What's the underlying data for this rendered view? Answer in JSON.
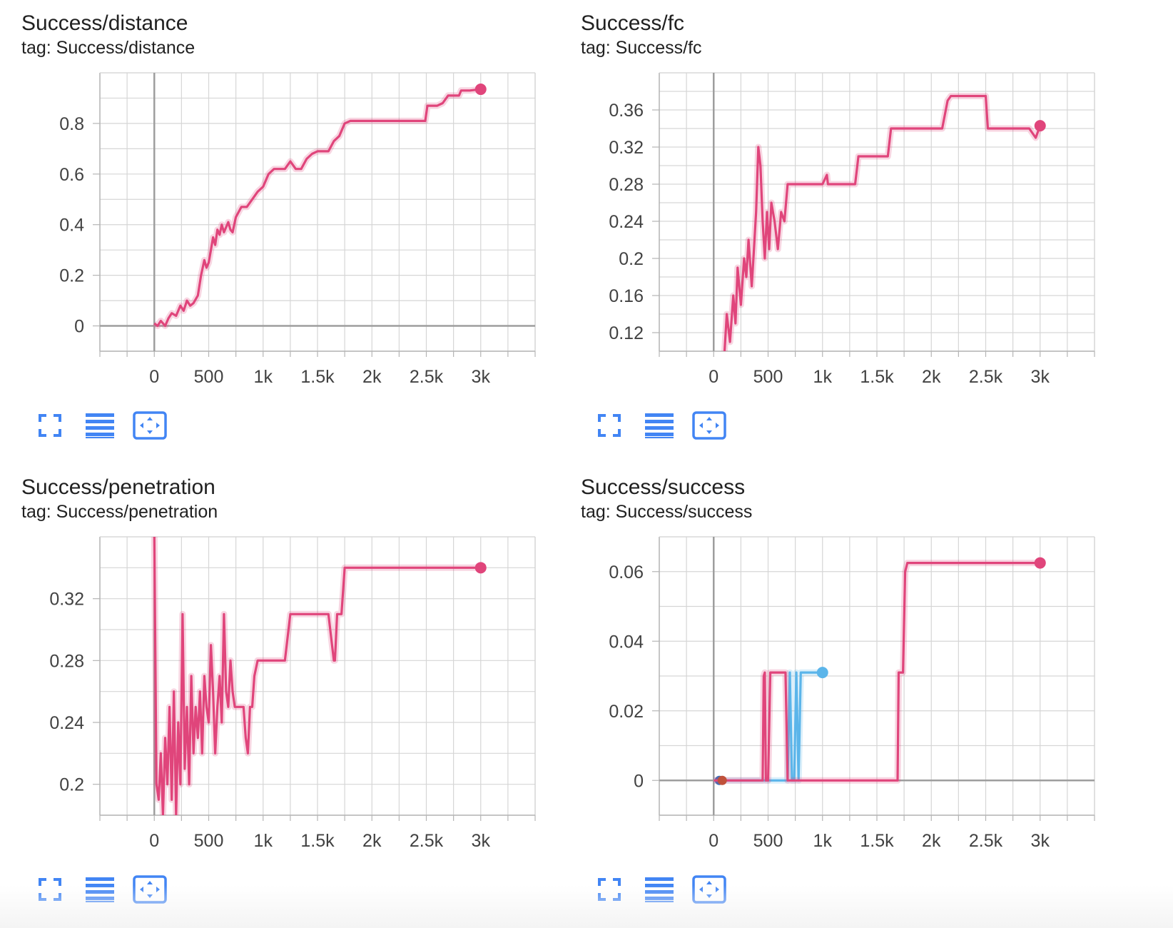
{
  "colors": {
    "accent": "#e0457b",
    "blue": "#5bb5ea",
    "icon": "#4285f4",
    "grid": "#dcdcdc",
    "axis": "#999999"
  },
  "icons": {
    "fullscreen": "fullscreen-icon",
    "log_scale": "list-lines-icon",
    "fit_domain": "fit-domain-icon"
  },
  "charts": [
    {
      "title": "Success/distance",
      "tag": "tag: Success/distance",
      "chart_data": {
        "type": "line",
        "xlim": [
          -500,
          3500
        ],
        "ylim": [
          -0.1,
          1.0
        ],
        "xticks": [
          0,
          500,
          1000,
          1500,
          2000,
          2500,
          3000
        ],
        "xtick_labels": [
          "0",
          "500",
          "1k",
          "1.5k",
          "2k",
          "2.5k",
          "3k"
        ],
        "yticks": [
          0,
          0.2,
          0.4,
          0.6,
          0.8
        ],
        "ytick_labels": [
          "0",
          "0.2",
          "0.4",
          "0.6",
          "0.8"
        ],
        "grid": true,
        "series": [
          {
            "color": "#e0457b",
            "x": [
              0,
              30,
              60,
              100,
              130,
              160,
              200,
              240,
              270,
              300,
              330,
              360,
              400,
              430,
              460,
              480,
              500,
              520,
              540,
              560,
              580,
              600,
              620,
              640,
              660,
              680,
              700,
              720,
              750,
              800,
              850,
              900,
              950,
              1000,
              1050,
              1100,
              1150,
              1200,
              1250,
              1300,
              1350,
              1400,
              1450,
              1500,
              1550,
              1600,
              1650,
              1700,
              1750,
              1800,
              1900,
              2000,
              2100,
              2200,
              2300,
              2400,
              2490,
              2510,
              2600,
              2650,
              2700,
              2800,
              2820,
              2900,
              3000
            ],
            "y": [
              0.01,
              0.0,
              0.02,
              0.0,
              0.03,
              0.05,
              0.04,
              0.08,
              0.06,
              0.1,
              0.08,
              0.09,
              0.12,
              0.2,
              0.26,
              0.23,
              0.25,
              0.3,
              0.35,
              0.32,
              0.38,
              0.36,
              0.4,
              0.37,
              0.39,
              0.41,
              0.38,
              0.37,
              0.43,
              0.47,
              0.47,
              0.5,
              0.53,
              0.55,
              0.6,
              0.62,
              0.62,
              0.62,
              0.65,
              0.62,
              0.62,
              0.66,
              0.68,
              0.69,
              0.69,
              0.69,
              0.73,
              0.75,
              0.8,
              0.81,
              0.81,
              0.81,
              0.81,
              0.81,
              0.81,
              0.81,
              0.81,
              0.87,
              0.87,
              0.88,
              0.91,
              0.91,
              0.93,
              0.93,
              0.935
            ]
          }
        ]
      }
    },
    {
      "title": "Success/fc",
      "tag": "tag: Success/fc",
      "chart_data": {
        "type": "line",
        "xlim": [
          -500,
          3500
        ],
        "ylim": [
          0.1,
          0.4
        ],
        "xticks": [
          0,
          500,
          1000,
          1500,
          2000,
          2500,
          3000
        ],
        "xtick_labels": [
          "0",
          "500",
          "1k",
          "1.5k",
          "2k",
          "2.5k",
          "3k"
        ],
        "yticks": [
          0.12,
          0.16,
          0.2,
          0.24,
          0.28,
          0.32,
          0.36
        ],
        "ytick_labels": [
          "0.12",
          "0.16",
          "0.2",
          "0.24",
          "0.28",
          "0.32",
          "0.36"
        ],
        "grid": true,
        "series": [
          {
            "color": "#e0457b",
            "x": [
              100,
              120,
              150,
              180,
              200,
              220,
              250,
              280,
              300,
              320,
              350,
              370,
              390,
              410,
              430,
              450,
              470,
              490,
              510,
              530,
              560,
              590,
              620,
              650,
              680,
              700,
              750,
              800,
              900,
              1000,
              1040,
              1050,
              1100,
              1200,
              1300,
              1330,
              1350,
              1400,
              1500,
              1600,
              1630,
              1650,
              1700,
              1800,
              1900,
              2000,
              2100,
              2150,
              2180,
              2300,
              2400,
              2500,
              2520,
              2600,
              2700,
              2800,
              2900,
              2960,
              3000
            ],
            "y": [
              0.1,
              0.14,
              0.11,
              0.16,
              0.13,
              0.19,
              0.15,
              0.2,
              0.18,
              0.22,
              0.17,
              0.21,
              0.25,
              0.32,
              0.3,
              0.24,
              0.2,
              0.25,
              0.21,
              0.26,
              0.24,
              0.21,
              0.25,
              0.24,
              0.28,
              0.28,
              0.28,
              0.28,
              0.28,
              0.28,
              0.29,
              0.28,
              0.28,
              0.28,
              0.28,
              0.31,
              0.31,
              0.31,
              0.31,
              0.31,
              0.34,
              0.34,
              0.34,
              0.34,
              0.34,
              0.34,
              0.34,
              0.37,
              0.375,
              0.375,
              0.375,
              0.375,
              0.34,
              0.34,
              0.34,
              0.34,
              0.34,
              0.33,
              0.343
            ]
          }
        ]
      }
    },
    {
      "title": "Success/penetration",
      "tag": "tag: Success/penetration",
      "chart_data": {
        "type": "line",
        "xlim": [
          -500,
          3500
        ],
        "ylim": [
          0.18,
          0.36
        ],
        "xticks": [
          0,
          500,
          1000,
          1500,
          2000,
          2500,
          3000
        ],
        "xtick_labels": [
          "0",
          "500",
          "1k",
          "1.5k",
          "2k",
          "2.5k",
          "3k"
        ],
        "yticks": [
          0.2,
          0.24,
          0.28,
          0.32
        ],
        "ytick_labels": [
          "0.2",
          "0.24",
          "0.28",
          "0.32"
        ],
        "grid": true,
        "series": [
          {
            "color": "#e0457b",
            "x": [
              0,
              20,
              40,
              60,
              80,
              100,
              120,
              140,
              160,
              180,
              200,
              220,
              240,
              260,
              280,
              300,
              320,
              340,
              360,
              380,
              400,
              420,
              440,
              460,
              480,
              500,
              520,
              540,
              560,
              580,
              600,
              620,
              640,
              660,
              680,
              700,
              720,
              740,
              760,
              780,
              800,
              820,
              840,
              860,
              880,
              900,
              920,
              950,
              1000,
              1050,
              1100,
              1150,
              1200,
              1250,
              1300,
              1350,
              1400,
              1450,
              1500,
              1550,
              1600,
              1650,
              1660,
              1680,
              1700,
              1720,
              1750,
              1800,
              1900,
              2000,
              2200,
              2400,
              2600,
              2800,
              3000
            ],
            "y": [
              0.36,
              0.2,
              0.19,
              0.22,
              0.18,
              0.23,
              0.2,
              0.25,
              0.19,
              0.26,
              0.18,
              0.24,
              0.2,
              0.31,
              0.21,
              0.25,
              0.2,
              0.27,
              0.22,
              0.25,
              0.23,
              0.26,
              0.22,
              0.27,
              0.25,
              0.24,
              0.29,
              0.26,
              0.22,
              0.25,
              0.27,
              0.24,
              0.31,
              0.26,
              0.25,
              0.28,
              0.26,
              0.25,
              0.25,
              0.25,
              0.25,
              0.25,
              0.23,
              0.22,
              0.25,
              0.25,
              0.27,
              0.28,
              0.28,
              0.28,
              0.28,
              0.28,
              0.28,
              0.31,
              0.31,
              0.31,
              0.31,
              0.31,
              0.31,
              0.31,
              0.31,
              0.28,
              0.28,
              0.31,
              0.31,
              0.31,
              0.34,
              0.34,
              0.34,
              0.34,
              0.34,
              0.34,
              0.34,
              0.34,
              0.34
            ]
          }
        ]
      }
    },
    {
      "title": "Success/success",
      "tag": "tag: Success/success",
      "chart_data": {
        "type": "line",
        "xlim": [
          -500,
          3500
        ],
        "ylim": [
          -0.01,
          0.07
        ],
        "xticks": [
          0,
          500,
          1000,
          1500,
          2000,
          2500,
          3000
        ],
        "xtick_labels": [
          "0",
          "500",
          "1k",
          "1.5k",
          "2k",
          "2.5k",
          "3k"
        ],
        "yticks": [
          0,
          0.02,
          0.04,
          0.06
        ],
        "ytick_labels": [
          "0",
          "0.02",
          "0.04",
          "0.06"
        ],
        "grid": true,
        "series": [
          {
            "color": "#5bb5ea",
            "x": [
              0,
              200,
              400,
              600,
              680,
              700,
              720,
              740,
              760,
              780,
              800,
              820,
              840,
              1000
            ],
            "y": [
              0,
              0,
              0,
              0,
              0,
              0.031,
              0,
              0,
              0.031,
              0,
              0.031,
              0.031,
              0.031,
              0.031
            ]
          },
          {
            "color": "#e0457b",
            "x": [
              0,
              200,
              400,
              450,
              460,
              470,
              480,
              500,
              520,
              540,
              560,
              580,
              600,
              620,
              640,
              660,
              680,
              700,
              900,
              1200,
              1500,
              1690,
              1700,
              1720,
              1740,
              1760,
              1780,
              1800,
              2000,
              2500,
              3000
            ],
            "y": [
              0,
              0,
              0,
              0,
              0.03,
              0.031,
              0,
              0,
              0.031,
              0.031,
              0.031,
              0.031,
              0.031,
              0.031,
              0.031,
              0.031,
              0,
              0,
              0,
              0,
              0,
              0,
              0.031,
              0.031,
              0.031,
              0.06,
              0.0625,
              0.0625,
              0.0625,
              0.0625,
              0.0625
            ]
          }
        ]
      }
    }
  ]
}
